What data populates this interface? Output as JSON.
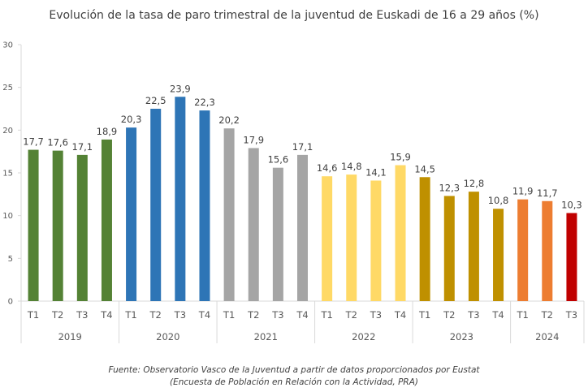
{
  "chart_data": {
    "type": "bar",
    "title": "Evolución de la tasa de paro trimestral de la juventud de Euskadi de 16 a 29 años (%)",
    "xlabel": "",
    "ylabel": "",
    "ylim": [
      0,
      30
    ],
    "yticks": [
      0,
      5,
      10,
      15,
      20,
      25,
      30
    ],
    "grid": false,
    "groups": [
      {
        "year": "2019",
        "color": "#548235",
        "quarters": [
          "T1",
          "T2",
          "T3",
          "T4"
        ],
        "values": [
          17.7,
          17.6,
          17.1,
          18.9
        ],
        "labels": [
          "17,7",
          "17,6",
          "17,1",
          "18,9"
        ]
      },
      {
        "year": "2020",
        "color": "#2E75B6",
        "quarters": [
          "T1",
          "T2",
          "T3",
          "T4"
        ],
        "values": [
          20.3,
          22.5,
          23.9,
          22.3
        ],
        "labels": [
          "20,3",
          "22,5",
          "23,9",
          "22,3"
        ]
      },
      {
        "year": "2021",
        "color": "#A5A5A5",
        "quarters": [
          "T1",
          "T2",
          "T3",
          "T4"
        ],
        "values": [
          20.2,
          17.9,
          15.6,
          17.1
        ],
        "labels": [
          "20,2",
          "17,9",
          "15,6",
          "17,1"
        ]
      },
      {
        "year": "2022",
        "color": "#FFD966",
        "quarters": [
          "T1",
          "T2",
          "T3",
          "T4"
        ],
        "values": [
          14.6,
          14.8,
          14.1,
          15.9
        ],
        "labels": [
          "14,6",
          "14,8",
          "14,1",
          "15,9"
        ]
      },
      {
        "year": "2023",
        "color": "#BF9000",
        "quarters": [
          "T1",
          "T2",
          "T3",
          "T4"
        ],
        "values": [
          14.5,
          12.3,
          12.8,
          10.8
        ],
        "labels": [
          "14,5",
          "12,3",
          "12,8",
          "10,8"
        ]
      },
      {
        "year": "2024",
        "color": "#ED7D31",
        "quarters": [
          "T1",
          "T2",
          "T3"
        ],
        "values": [
          11.9,
          11.7,
          10.3
        ],
        "labels": [
          "11,9",
          "11,7",
          "10,3"
        ],
        "highlight_last_color": "#C00000"
      }
    ]
  },
  "source": {
    "line1": "Fuente: Observatorio Vasco de la Juventud a partir de datos proporcionados por Eustat",
    "line2": "(Encuesta de Población en Relación con la Actividad, PRA)"
  }
}
